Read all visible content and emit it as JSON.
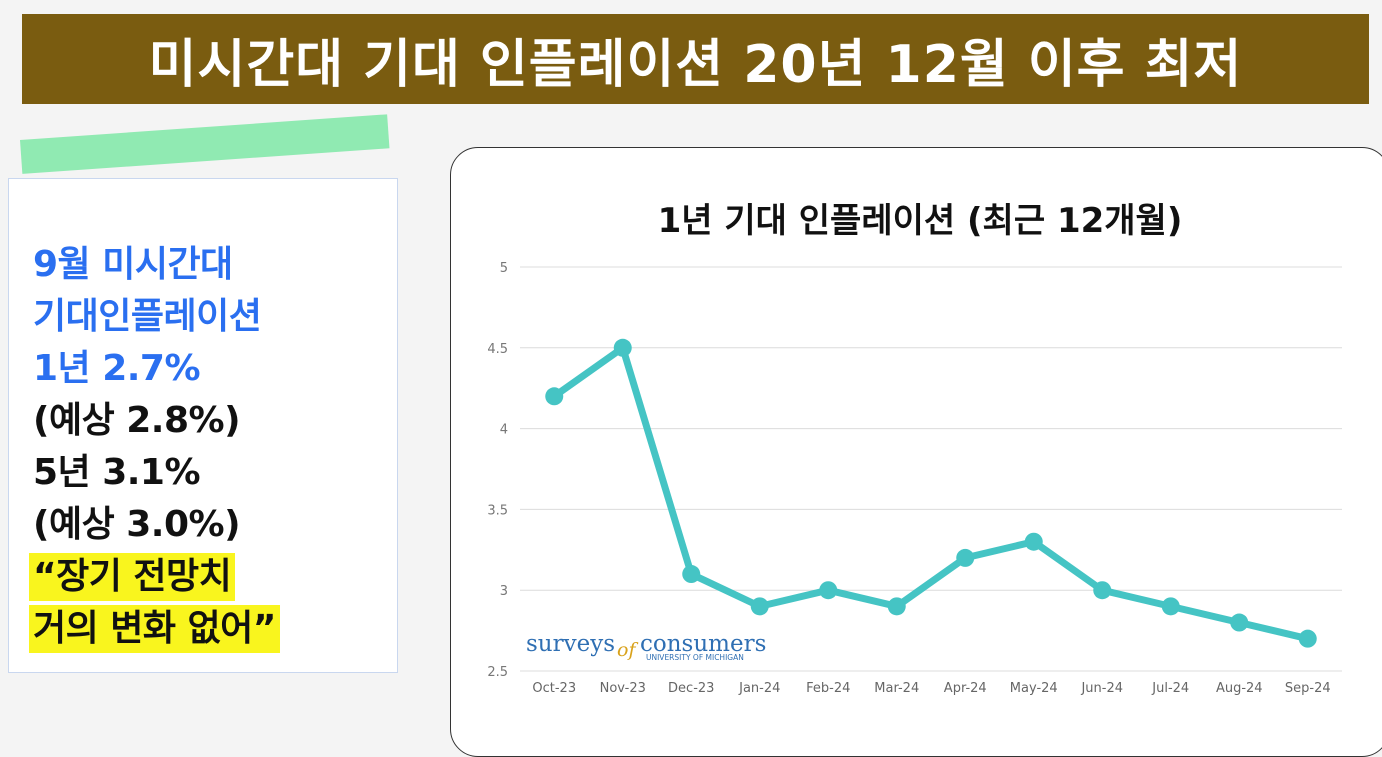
{
  "banner": {
    "title": "미시간대 기대 인플레이션 20년 12월 이후 최저"
  },
  "info": {
    "lines": [
      {
        "text": "9월 미시간대",
        "style": "blue"
      },
      {
        "text": "기대인플레이션",
        "style": "blue"
      },
      {
        "text": "1년 2.7%",
        "style": "blue"
      },
      {
        "text": "(예상 2.8%)",
        "style": "black"
      },
      {
        "text": "5년 3.1%",
        "style": "black"
      },
      {
        "text": "(예상 3.0%)",
        "style": "black"
      },
      {
        "text": "“장기 전망치",
        "style": "yellow"
      },
      {
        "text": "거의 변화 없어”",
        "style": "yellow"
      }
    ]
  },
  "watermark": {
    "main": "surveys",
    "of": "of",
    "consumers": "consumers",
    "sub": "UNIVERSITY OF MICHIGAN"
  },
  "colors": {
    "line": "#45c4c4",
    "banner": "#7a5c10",
    "blue_text": "#2a6ff0",
    "highlight": "#f9f51e"
  },
  "chart_data": {
    "type": "line",
    "title": "1년 기대 인플레이션 (최근 12개월)",
    "categories": [
      "Oct-23",
      "Nov-23",
      "Dec-23",
      "Jan-24",
      "Feb-24",
      "Mar-24",
      "Apr-24",
      "May-24",
      "Jun-24",
      "Jul-24",
      "Aug-24",
      "Sep-24"
    ],
    "series": [
      {
        "values": [
          4.2,
          4.5,
          3.1,
          2.9,
          3.0,
          2.9,
          3.2,
          3.3,
          3.0,
          2.9,
          2.8,
          2.7
        ]
      }
    ],
    "y_ticks": [
      "2.5",
      "3",
      "3.5",
      "4",
      "4.5",
      "5"
    ],
    "ylim": [
      2.5,
      5
    ],
    "grid": true
  }
}
